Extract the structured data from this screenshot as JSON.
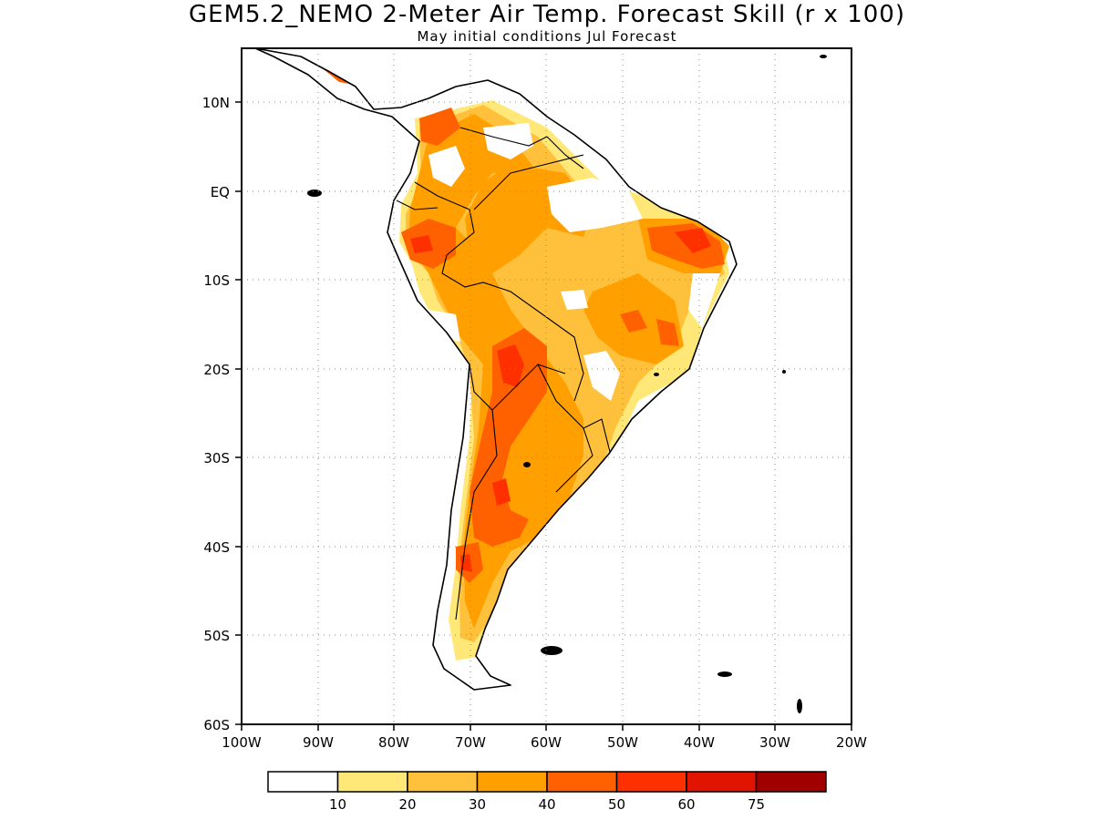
{
  "title": "GEM5.2_NEMO 2-Meter Air Temp. Forecast Skill (r x 100)",
  "subtitle": "May initial conditions  Jul Forecast",
  "lat_labels": [
    "10N",
    "EQ",
    "10S",
    "20S",
    "30S",
    "40S",
    "50S",
    "60S"
  ],
  "lon_labels": [
    "100W",
    "90W",
    "80W",
    "70W",
    "60W",
    "50W",
    "40W",
    "30W",
    "20W"
  ],
  "legend": {
    "colors": [
      "#ffffff",
      "#ffe878",
      "#ffc03c",
      "#ffa000",
      "#ff6000",
      "#ff3000",
      "#e01400",
      "#a00000"
    ],
    "labels": [
      "10",
      "20",
      "30",
      "40",
      "50",
      "60",
      "75"
    ]
  }
}
